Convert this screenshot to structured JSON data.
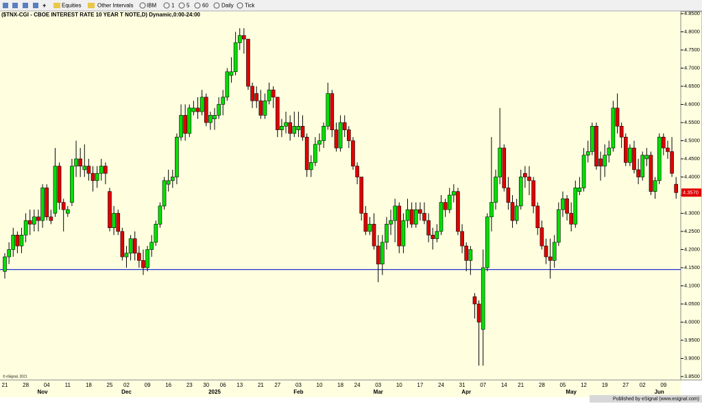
{
  "toolbar": {
    "items": [
      "Equities",
      "Other Intervals",
      "IBM",
      "1",
      "5",
      "60",
      "Daily",
      "Tick"
    ]
  },
  "chart_data": {
    "type": "candlestick",
    "title": "($TNX-CGI - CBOE INTEREST RATE 10 YEAR T NOTE,D) Dynamic,0:00-24:00",
    "up_color": "#00e000",
    "down_color": "#e00000",
    "ylim": [
      3.85,
      4.85
    ],
    "yticks": [
      {
        "value": 3.85,
        "label": "3.8500"
      },
      {
        "value": 3.9,
        "label": "3.9000"
      },
      {
        "value": 3.95,
        "label": "3.9500"
      },
      {
        "value": 4.0,
        "label": "4.0000"
      },
      {
        "value": 4.05,
        "label": "4.0500"
      },
      {
        "value": 4.1,
        "label": "4.1000"
      },
      {
        "value": 4.15,
        "label": "4.1500"
      },
      {
        "value": 4.2,
        "label": "4.2000"
      },
      {
        "value": 4.25,
        "label": "4.2500"
      },
      {
        "value": 4.3,
        "label": "4.3000"
      },
      {
        "value": 4.35,
        "label": "4.3500"
      },
      {
        "value": 4.4,
        "label": "4.4000"
      },
      {
        "value": 4.45,
        "label": "4.4500"
      },
      {
        "value": 4.5,
        "label": "4.5000"
      },
      {
        "value": 4.55,
        "label": "4.5500"
      },
      {
        "value": 4.6,
        "label": "4.6000"
      },
      {
        "value": 4.65,
        "label": "4.6500"
      },
      {
        "value": 4.7,
        "label": "4.7000"
      },
      {
        "value": 4.75,
        "label": "4.7500"
      },
      {
        "value": 4.8,
        "label": "4.8000"
      },
      {
        "value": 4.85,
        "label": "4.8500"
      }
    ],
    "hline": 4.145,
    "hline_color": "#2030d0",
    "last_price": {
      "value": 4.357,
      "label": "4.3570"
    },
    "categories": [
      "21",
      null,
      null,
      null,
      null,
      "28",
      null,
      null,
      null,
      null,
      "04",
      null,
      null,
      null,
      null,
      "11",
      null,
      null,
      null,
      null,
      "18",
      null,
      null,
      null,
      null,
      "25",
      null,
      null,
      null,
      "02",
      null,
      null,
      null,
      null,
      "09",
      null,
      null,
      null,
      null,
      "16",
      null,
      null,
      null,
      null,
      "23",
      null,
      null,
      null,
      "30",
      null,
      null,
      null,
      "06",
      null,
      null,
      null,
      "13",
      null,
      null,
      null,
      null,
      "21",
      null,
      null,
      null,
      "27",
      null,
      null,
      null,
      null,
      "03",
      null,
      null,
      null,
      null,
      "10",
      null,
      null,
      null,
      null,
      "18",
      null,
      null,
      null,
      "24",
      null,
      null,
      null,
      null,
      "03",
      null,
      null,
      null,
      null,
      "10",
      null,
      null,
      null,
      null,
      "17",
      null,
      null,
      null,
      null,
      "24",
      null,
      null,
      null,
      null,
      "31",
      null,
      null,
      null,
      null,
      "07",
      null,
      null,
      null,
      null,
      "14",
      null,
      null,
      null,
      "21",
      null,
      null,
      null,
      null,
      "28",
      null,
      null,
      null,
      null,
      "05",
      null,
      null,
      null,
      null,
      "12",
      null,
      null,
      null,
      null,
      "19",
      null,
      null,
      null,
      null,
      "27",
      null,
      null,
      null,
      "02",
      null,
      null,
      null,
      null,
      "09",
      null,
      null,
      null
    ],
    "months": [
      null,
      null,
      null,
      null,
      null,
      null,
      null,
      null,
      null,
      "Nov",
      null,
      null,
      null,
      null,
      null,
      null,
      null,
      null,
      null,
      null,
      null,
      null,
      null,
      null,
      null,
      null,
      null,
      null,
      null,
      "Dec",
      null,
      null,
      null,
      null,
      null,
      null,
      null,
      null,
      null,
      null,
      null,
      null,
      null,
      null,
      null,
      null,
      null,
      null,
      null,
      null,
      "2025",
      null,
      null,
      null,
      null,
      null,
      null,
      null,
      null,
      null,
      null,
      null,
      null,
      null,
      null,
      null,
      null,
      null,
      null,
      null,
      "Feb",
      null,
      null,
      null,
      null,
      null,
      null,
      null,
      null,
      null,
      null,
      null,
      null,
      null,
      null,
      null,
      null,
      null,
      null,
      "Mar",
      null,
      null,
      null,
      null,
      null,
      null,
      null,
      null,
      null,
      null,
      null,
      null,
      null,
      null,
      null,
      null,
      null,
      null,
      null,
      null,
      "Apr",
      null,
      null,
      null,
      null,
      null,
      null,
      null,
      null,
      null,
      null,
      null,
      null,
      null,
      null,
      null,
      null,
      null,
      null,
      null,
      null,
      null,
      null,
      null,
      null,
      "May",
      null,
      null,
      null,
      null,
      null,
      null,
      null,
      null,
      null,
      null,
      null,
      null,
      null,
      null,
      null,
      null,
      null,
      null,
      null,
      null,
      "Jun",
      null,
      null,
      null,
      null,
      null,
      null,
      null,
      null
    ],
    "candles": [
      [
        4.14,
        4.19,
        4.12,
        4.18
      ],
      [
        4.18,
        4.22,
        4.16,
        4.2
      ],
      [
        4.2,
        4.26,
        4.18,
        4.24
      ],
      [
        4.24,
        4.25,
        4.19,
        4.21
      ],
      [
        4.21,
        4.26,
        4.19,
        4.24
      ],
      [
        4.24,
        4.3,
        4.22,
        4.28
      ],
      [
        4.28,
        4.31,
        4.24,
        4.27
      ],
      [
        4.27,
        4.31,
        4.25,
        4.29
      ],
      [
        4.29,
        4.31,
        4.25,
        4.28
      ],
      [
        4.28,
        4.38,
        4.26,
        4.37
      ],
      [
        4.37,
        4.38,
        4.28,
        4.29
      ],
      [
        4.29,
        4.31,
        4.27,
        4.28
      ],
      [
        4.3,
        4.48,
        4.29,
        4.43
      ],
      [
        4.43,
        4.44,
        4.31,
        4.33
      ],
      [
        4.33,
        4.34,
        4.25,
        4.31
      ],
      [
        4.3,
        4.32,
        4.29,
        4.31
      ],
      [
        4.33,
        4.45,
        4.32,
        4.43
      ],
      [
        4.43,
        4.5,
        4.4,
        4.45
      ],
      [
        4.45,
        4.48,
        4.4,
        4.43
      ],
      [
        4.42,
        4.49,
        4.4,
        4.43
      ],
      [
        4.43,
        4.45,
        4.39,
        4.41
      ],
      [
        4.41,
        4.43,
        4.36,
        4.39
      ],
      [
        4.39,
        4.43,
        4.37,
        4.41
      ],
      [
        4.41,
        4.45,
        4.39,
        4.43
      ],
      [
        4.43,
        4.44,
        4.38,
        4.41
      ],
      [
        4.36,
        4.37,
        4.25,
        4.26
      ],
      [
        4.26,
        4.32,
        4.24,
        4.3
      ],
      [
        4.3,
        4.31,
        4.24,
        4.25
      ],
      [
        4.25,
        4.26,
        4.17,
        4.18
      ],
      [
        4.18,
        4.21,
        4.15,
        4.19
      ],
      [
        4.19,
        4.24,
        4.17,
        4.23
      ],
      [
        4.23,
        4.25,
        4.17,
        4.19
      ],
      [
        4.19,
        4.21,
        4.15,
        4.17
      ],
      [
        4.17,
        4.2,
        4.13,
        4.15
      ],
      [
        4.15,
        4.21,
        4.14,
        4.2
      ],
      [
        4.2,
        4.24,
        4.18,
        4.22
      ],
      [
        4.22,
        4.28,
        4.21,
        4.27
      ],
      [
        4.27,
        4.33,
        4.26,
        4.32
      ],
      [
        4.32,
        4.4,
        4.31,
        4.39
      ],
      [
        4.38,
        4.42,
        4.36,
        4.39
      ],
      [
        4.39,
        4.42,
        4.37,
        4.4
      ],
      [
        4.4,
        4.52,
        4.38,
        4.51
      ],
      [
        4.51,
        4.6,
        4.5,
        4.57
      ],
      [
        4.57,
        4.6,
        4.5,
        4.52
      ],
      [
        4.52,
        4.6,
        4.51,
        4.59
      ],
      [
        4.58,
        4.61,
        4.57,
        4.59
      ],
      [
        4.59,
        4.62,
        4.56,
        4.58
      ],
      [
        4.58,
        4.64,
        4.57,
        4.62
      ],
      [
        4.62,
        4.63,
        4.54,
        4.55
      ],
      [
        4.55,
        4.58,
        4.53,
        4.57
      ],
      [
        4.56,
        4.59,
        4.53,
        4.57
      ],
      [
        4.57,
        4.62,
        4.56,
        4.6
      ],
      [
        4.6,
        4.64,
        4.57,
        4.62
      ],
      [
        4.62,
        4.7,
        4.61,
        4.69
      ],
      [
        4.68,
        4.73,
        4.66,
        4.69
      ],
      [
        4.69,
        4.8,
        4.68,
        4.77
      ],
      [
        4.77,
        4.81,
        4.75,
        4.79
      ],
      [
        4.79,
        4.81,
        4.74,
        4.78
      ],
      [
        4.78,
        4.78,
        4.64,
        4.65
      ],
      [
        4.65,
        4.66,
        4.59,
        4.61
      ],
      [
        4.63,
        4.65,
        4.59,
        4.61
      ],
      [
        4.61,
        4.64,
        4.56,
        4.57
      ],
      [
        4.57,
        4.63,
        4.56,
        4.61
      ],
      [
        4.61,
        4.66,
        4.6,
        4.64
      ],
      [
        4.64,
        4.65,
        4.59,
        4.62
      ],
      [
        4.62,
        4.62,
        4.51,
        4.53
      ],
      [
        4.53,
        4.56,
        4.51,
        4.54
      ],
      [
        4.54,
        4.58,
        4.52,
        4.55
      ],
      [
        4.55,
        4.57,
        4.5,
        4.52
      ],
      [
        4.52,
        4.58,
        4.51,
        4.54
      ],
      [
        4.53,
        4.58,
        4.51,
        4.54
      ],
      [
        4.54,
        4.57,
        4.5,
        4.51
      ],
      [
        4.51,
        4.52,
        4.4,
        4.42
      ],
      [
        4.42,
        4.46,
        4.4,
        4.44
      ],
      [
        4.44,
        4.51,
        4.43,
        4.49
      ],
      [
        4.49,
        4.52,
        4.47,
        4.5
      ],
      [
        4.5,
        4.55,
        4.48,
        4.54
      ],
      [
        4.54,
        4.66,
        4.53,
        4.63
      ],
      [
        4.63,
        4.64,
        4.51,
        4.53
      ],
      [
        4.53,
        4.55,
        4.47,
        4.48
      ],
      [
        4.48,
        4.57,
        4.47,
        4.55
      ],
      [
        4.55,
        4.57,
        4.51,
        4.53
      ],
      [
        4.53,
        4.54,
        4.48,
        4.5
      ],
      [
        4.5,
        4.51,
        4.42,
        4.43
      ],
      [
        4.43,
        4.44,
        4.38,
        4.4
      ],
      [
        4.4,
        4.4,
        4.28,
        4.3
      ],
      [
        4.3,
        4.32,
        4.24,
        4.25
      ],
      [
        4.25,
        4.29,
        4.24,
        4.27
      ],
      [
        4.27,
        4.3,
        4.2,
        4.21
      ],
      [
        4.21,
        4.24,
        4.11,
        4.16
      ],
      [
        4.16,
        4.24,
        4.13,
        4.22
      ],
      [
        4.22,
        4.29,
        4.2,
        4.27
      ],
      [
        4.27,
        4.31,
        4.24,
        4.28
      ],
      [
        4.28,
        4.34,
        4.22,
        4.32
      ],
      [
        4.32,
        4.33,
        4.19,
        4.21
      ],
      [
        4.21,
        4.3,
        4.19,
        4.28
      ],
      [
        4.28,
        4.34,
        4.26,
        4.31
      ],
      [
        4.31,
        4.33,
        4.26,
        4.27
      ],
      [
        4.27,
        4.33,
        4.26,
        4.31
      ],
      [
        4.31,
        4.33,
        4.28,
        4.3
      ],
      [
        4.3,
        4.33,
        4.27,
        4.28
      ],
      [
        4.28,
        4.3,
        4.22,
        4.24
      ],
      [
        4.24,
        4.26,
        4.2,
        4.23
      ],
      [
        4.23,
        4.27,
        4.22,
        4.25
      ],
      [
        4.25,
        4.35,
        4.24,
        4.33
      ],
      [
        4.33,
        4.34,
        4.29,
        4.31
      ],
      [
        4.31,
        4.37,
        4.3,
        4.35
      ],
      [
        4.35,
        4.38,
        4.33,
        4.36
      ],
      [
        4.36,
        4.37,
        4.24,
        4.25
      ],
      [
        4.25,
        4.27,
        4.19,
        4.21
      ],
      [
        4.21,
        4.22,
        4.14,
        4.17
      ],
      [
        4.17,
        4.21,
        4.13,
        4.2
      ],
      [
        4.07,
        4.08,
        4.01,
        4.05
      ],
      [
        4.05,
        4.06,
        3.88,
        4.0
      ],
      [
        3.98,
        4.2,
        3.88,
        4.15
      ],
      [
        4.15,
        4.3,
        4.14,
        4.29
      ],
      [
        4.29,
        4.51,
        4.25,
        4.33
      ],
      [
        4.33,
        4.42,
        4.31,
        4.4
      ],
      [
        4.4,
        4.59,
        4.38,
        4.48
      ],
      [
        4.48,
        4.49,
        4.36,
        4.37
      ],
      [
        4.37,
        4.4,
        4.31,
        4.33
      ],
      [
        4.33,
        4.35,
        4.26,
        4.28
      ],
      [
        4.28,
        4.34,
        4.27,
        4.32
      ],
      [
        4.32,
        4.42,
        4.31,
        4.4
      ],
      [
        4.41,
        4.43,
        4.37,
        4.4
      ],
      [
        4.4,
        4.43,
        4.35,
        4.39
      ],
      [
        4.39,
        4.4,
        4.3,
        4.32
      ],
      [
        4.32,
        4.33,
        4.24,
        4.26
      ],
      [
        4.26,
        4.28,
        4.2,
        4.21
      ],
      [
        4.21,
        4.23,
        4.16,
        4.18
      ],
      [
        4.18,
        4.23,
        4.12,
        4.17
      ],
      [
        4.17,
        4.24,
        4.15,
        4.22
      ],
      [
        4.22,
        4.33,
        4.21,
        4.31
      ],
      [
        4.31,
        4.36,
        4.29,
        4.34
      ],
      [
        4.34,
        4.35,
        4.28,
        4.3
      ],
      [
        4.3,
        4.33,
        4.25,
        4.27
      ],
      [
        4.27,
        4.39,
        4.26,
        4.37
      ],
      [
        4.36,
        4.4,
        4.35,
        4.37
      ],
      [
        4.37,
        4.48,
        4.36,
        4.46
      ],
      [
        4.46,
        4.5,
        4.44,
        4.47
      ],
      [
        4.47,
        4.55,
        4.46,
        4.54
      ],
      [
        4.54,
        4.55,
        4.42,
        4.43
      ],
      [
        4.45,
        4.47,
        4.39,
        4.43
      ],
      [
        4.43,
        4.49,
        4.4,
        4.46
      ],
      [
        4.46,
        4.5,
        4.44,
        4.48
      ],
      [
        4.48,
        4.61,
        4.47,
        4.59
      ],
      [
        4.59,
        4.63,
        4.52,
        4.54
      ],
      [
        4.54,
        4.55,
        4.48,
        4.51
      ],
      [
        4.51,
        4.52,
        4.43,
        4.44
      ],
      [
        4.44,
        4.49,
        4.43,
        4.48
      ],
      [
        4.48,
        4.5,
        4.41,
        4.42
      ],
      [
        4.42,
        4.45,
        4.38,
        4.4
      ],
      [
        4.4,
        4.47,
        4.39,
        4.46
      ],
      [
        4.45,
        4.48,
        4.43,
        4.46
      ],
      [
        4.46,
        4.47,
        4.35,
        4.36
      ],
      [
        4.36,
        4.4,
        4.34,
        4.39
      ],
      [
        4.39,
        4.52,
        4.38,
        4.51
      ],
      [
        4.51,
        4.52,
        4.46,
        4.48
      ],
      [
        4.48,
        4.5,
        4.45,
        4.47
      ],
      [
        4.47,
        4.51,
        4.4,
        4.41
      ],
      [
        4.38,
        4.4,
        4.34,
        4.357
      ]
    ]
  },
  "footer": {
    "copyright": "© eSignal, 2021",
    "published": "Published by eSignal (www.esignal.com)"
  }
}
